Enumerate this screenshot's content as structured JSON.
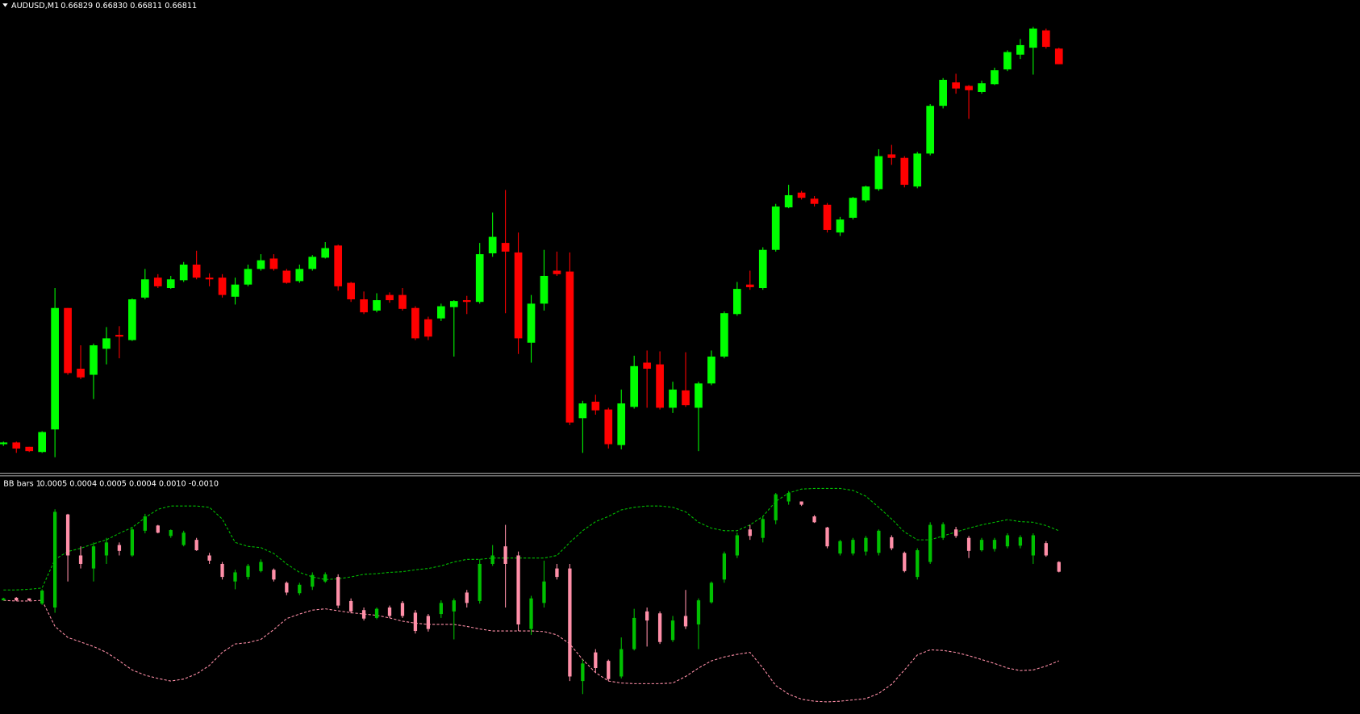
{
  "header": {
    "symbol": "AUDUSD,M1",
    "quote": "0.66829 0.66830 0.66811 0.66811"
  },
  "indicator_header": {
    "name": "BB bars 1",
    "values": "0.0005 0.0004 0.0005 0.0004 0.0010 -0.0010"
  },
  "chart_data": [
    {
      "type": "candlestick",
      "up_color": "#00ff00",
      "down_color": "#ff0000",
      "open": [
        0.66373,
        0.66375,
        0.6637,
        0.66364,
        0.6639,
        0.6653,
        0.6646,
        0.66453,
        0.66483,
        0.66499,
        0.66493,
        0.66542,
        0.66565,
        0.66553,
        0.66562,
        0.6658,
        0.66565,
        0.66565,
        0.66543,
        0.66557,
        0.66575,
        0.66587,
        0.66573,
        0.66561,
        0.66575,
        0.66588,
        0.66602,
        0.66559,
        0.6654,
        0.66527,
        0.66545,
        0.66545,
        0.6653,
        0.66517,
        0.66518,
        0.66531,
        0.66539,
        0.66537,
        0.66593,
        0.66605,
        0.66594,
        0.6649,
        0.66535,
        0.66573,
        0.66572,
        0.66403,
        0.66422,
        0.66413,
        0.66372,
        0.66416,
        0.66467,
        0.66465,
        0.66415,
        0.66435,
        0.66415,
        0.66443,
        0.66474,
        0.66523,
        0.66557,
        0.66553,
        0.66597,
        0.66646,
        0.66663,
        0.66656,
        0.66649,
        0.66617,
        0.66634,
        0.66654,
        0.66667,
        0.66707,
        0.66703,
        0.6667,
        0.66708,
        0.66763,
        0.6679,
        0.66786,
        0.66779,
        0.66788,
        0.66805,
        0.66822,
        0.6683,
        0.6685,
        0.66829
      ],
      "high": [
        0.66376,
        0.66376,
        0.6637,
        0.66388,
        0.66553,
        0.6653,
        0.66487,
        0.66489,
        0.66508,
        0.66509,
        0.66541,
        0.66575,
        0.66569,
        0.66567,
        0.66583,
        0.66596,
        0.6657,
        0.66569,
        0.66565,
        0.6658,
        0.66592,
        0.66592,
        0.66575,
        0.6658,
        0.66591,
        0.66606,
        0.66603,
        0.6656,
        0.66549,
        0.66547,
        0.66548,
        0.66553,
        0.66532,
        0.6652,
        0.66535,
        0.66539,
        0.66544,
        0.66605,
        0.6664,
        0.66666,
        0.66617,
        0.66545,
        0.66597,
        0.66595,
        0.66594,
        0.66423,
        0.6643,
        0.66415,
        0.66436,
        0.66475,
        0.66481,
        0.6648,
        0.66445,
        0.66479,
        0.66445,
        0.66481,
        0.66526,
        0.6656,
        0.66573,
        0.666,
        0.6665,
        0.66672,
        0.66665,
        0.66659,
        0.66651,
        0.66635,
        0.66658,
        0.66671,
        0.66713,
        0.66718,
        0.66705,
        0.6671,
        0.66765,
        0.66795,
        0.668,
        0.66787,
        0.66792,
        0.66807,
        0.66827,
        0.6684,
        0.66854,
        0.66852,
        0.6683
      ],
      "low": [
        0.66371,
        0.66363,
        0.66364,
        0.66363,
        0.66358,
        0.66453,
        0.66448,
        0.66425,
        0.66465,
        0.66472,
        0.66492,
        0.6654,
        0.66553,
        0.66552,
        0.6656,
        0.66563,
        0.66555,
        0.66542,
        0.66534,
        0.66555,
        0.66573,
        0.66573,
        0.66558,
        0.66559,
        0.66573,
        0.66587,
        0.6655,
        0.66537,
        0.66523,
        0.66525,
        0.66536,
        0.66527,
        0.66493,
        0.66493,
        0.66515,
        0.66474,
        0.66523,
        0.66535,
        0.66589,
        0.66524,
        0.66477,
        0.66467,
        0.66527,
        0.66567,
        0.66395,
        0.66363,
        0.66407,
        0.66368,
        0.66367,
        0.66414,
        0.66415,
        0.66413,
        0.66409,
        0.66416,
        0.66365,
        0.66441,
        0.66472,
        0.66521,
        0.66551,
        0.66551,
        0.66595,
        0.66645,
        0.66655,
        0.66647,
        0.66617,
        0.66613,
        0.66632,
        0.66652,
        0.66665,
        0.66695,
        0.66669,
        0.66668,
        0.66706,
        0.6676,
        0.66777,
        0.66748,
        0.66777,
        0.66787,
        0.66803,
        0.66817,
        0.66799,
        0.66829,
        0.66811
      ],
      "close": [
        0.66375,
        0.66368,
        0.66365,
        0.66387,
        0.6653,
        0.66455,
        0.6645,
        0.66487,
        0.66495,
        0.66497,
        0.6654,
        0.66563,
        0.66555,
        0.66563,
        0.6658,
        0.66565,
        0.66563,
        0.66545,
        0.66557,
        0.66575,
        0.66585,
        0.66575,
        0.66559,
        0.66575,
        0.66589,
        0.66599,
        0.66555,
        0.6654,
        0.66525,
        0.66539,
        0.66539,
        0.66529,
        0.66495,
        0.66497,
        0.66532,
        0.66538,
        0.66537,
        0.66592,
        0.66612,
        0.66595,
        0.66495,
        0.66535,
        0.66567,
        0.66569,
        0.66398,
        0.6642,
        0.66412,
        0.66373,
        0.6642,
        0.66463,
        0.6646,
        0.66415,
        0.66436,
        0.66418,
        0.66443,
        0.66474,
        0.66524,
        0.66552,
        0.66554,
        0.66597,
        0.66647,
        0.6666,
        0.66657,
        0.6665,
        0.6662,
        0.66632,
        0.66657,
        0.6667,
        0.66705,
        0.66703,
        0.66672,
        0.66708,
        0.66763,
        0.66793,
        0.66783,
        0.66781,
        0.66789,
        0.66804,
        0.66825,
        0.66833,
        0.66852,
        0.66831,
        0.66811
      ]
    },
    {
      "type": "candlestick",
      "up_color": "#00c000",
      "down_color": "#ff8fa8",
      "open": [
        -8e-05,
        -4e-05,
        -5e-05,
        -0.00013,
        -0.00019,
        0.00124,
        0.00061,
        0.00041,
        0.00061,
        0.00077,
        0.00061,
        0.00099,
        0.00107,
        0.00091,
        0.00077,
        0.00085,
        0.00061,
        0.00048,
        0.00021,
        0.00028,
        0.00037,
        0.00039,
        0.00019,
        3e-05,
        0.00013,
        0.00021,
        0.00028,
        -9e-05,
        -0.00023,
        -0.00035,
        -0.00019,
        -0.00012,
        -0.00027,
        -0.00032,
        -0.00029,
        -0.00025,
        4e-05,
        -9e-05,
        0.00048,
        0.00075,
        0.00061,
        -0.00052,
        -0.00012,
        0.00041,
        0.00041,
        -0.00132,
        -0.00088,
        -0.00101,
        -0.00125,
        -0.00083,
        -0.00025,
        -0.00028,
        -0.00069,
        -0.00032,
        -0.00045,
        -0.00011,
        0.00024,
        0.00061,
        0.00101,
        0.00088,
        0.00115,
        0.00144,
        0.00144,
        0.00121,
        0.00104,
        0.00064,
        0.00064,
        0.00067,
        0.00065,
        0.00089,
        0.00065,
        0.00028,
        0.00051,
        0.00088,
        0.00101,
        0.00088,
        0.00069,
        0.00071,
        0.00075,
        0.00076,
        0.00061,
        0.0008,
        0.00051
      ],
      "high": [
        -4e-05,
        -3e-05,
        -5e-05,
        9e-05,
        0.00132,
        0.00125,
        0.00075,
        0.00081,
        0.00088,
        0.00081,
        0.00105,
        0.00125,
        0.00108,
        0.00101,
        0.00099,
        0.00088,
        0.00065,
        0.00051,
        0.00039,
        0.00048,
        0.00055,
        0.00041,
        0.00021,
        0.00019,
        0.00035,
        0.00035,
        0.00032,
        -5e-05,
        -0.00019,
        -0.00019,
        -0.00016,
        -9e-05,
        -0.00023,
        -0.00029,
        -8e-05,
        -5e-05,
        8e-05,
        0.00055,
        0.00077,
        0.00108,
        0.00067,
        -1e-05,
        0.00053,
        0.00048,
        0.00048,
        -0.00099,
        -0.00083,
        -0.00099,
        -0.00065,
        -0.00021,
        -0.00019,
        -0.00025,
        -0.00032,
        8e-05,
        -5e-05,
        0.00021,
        0.00067,
        0.00096,
        0.00108,
        0.00121,
        0.00157,
        0.0016,
        0.00144,
        0.00123,
        0.00105,
        0.00085,
        0.00088,
        0.00091,
        0.00101,
        0.00092,
        0.00067,
        0.00072,
        0.00112,
        0.00112,
        0.00105,
        0.00091,
        0.00088,
        0.00088,
        0.00095,
        0.00092,
        0.00095,
        0.00083,
        0.00052
      ],
      "low": [
        -8e-05,
        -9e-05,
        -9e-05,
        -0.00015,
        -0.00027,
        0.00021,
        0.00041,
        0.00021,
        0.00048,
        0.00061,
        0.00059,
        0.00095,
        0.00095,
        0.00088,
        0.00075,
        0.00068,
        0.00048,
        0.00024,
        9e-05,
        0.00024,
        0.00035,
        0.00021,
        0,
        0,
        8e-05,
        0.00019,
        -0.0002,
        -0.00028,
        -0.00039,
        -0.00037,
        -0.00035,
        -0.00035,
        -0.00059,
        -0.00056,
        -0.00035,
        -0.00068,
        -0.00019,
        -0.00013,
        0.00045,
        -0.00019,
        -0.00055,
        -0.00061,
        -0.00019,
        0.00024,
        -0.00132,
        -0.00152,
        -0.00119,
        -0.00132,
        -0.00128,
        -0.00085,
        -0.00079,
        -0.00075,
        -0.00072,
        -0.00052,
        -0.00083,
        -0.00013,
        0.00019,
        0.00057,
        0.00085,
        0.00081,
        0.00109,
        0.00139,
        0.00137,
        0.00111,
        0.00072,
        0.00061,
        0.00061,
        0.00061,
        0.00061,
        0.00069,
        0.00035,
        0.00024,
        0.00048,
        0.00085,
        0.00088,
        0.00057,
        0.00067,
        0.00067,
        0.00072,
        0.00072,
        0.00048,
        0.00059,
        0.00035
      ],
      "close": [
        -5e-05,
        -8e-05,
        -8e-05,
        7e-05,
        0.00128,
        0.00061,
        0.00048,
        0.00075,
        0.00081,
        0.00068,
        0.00101,
        0.00121,
        0.00096,
        0.001,
        0.00096,
        0.00069,
        0.00053,
        0.00028,
        0.00035,
        0.00045,
        0.00051,
        0.00024,
        4e-05,
        0.00016,
        0.00031,
        0.00032,
        -0.00016,
        -0.00025,
        -0.00036,
        -0.00021,
        -0.00032,
        -0.00032,
        -0.00055,
        -0.00052,
        -0.00012,
        -8e-05,
        -0.00012,
        0.00048,
        0.00061,
        0.00048,
        -0.00045,
        -5e-05,
        0.00021,
        0.00028,
        -0.00125,
        -0.00105,
        -0.00112,
        -0.00129,
        -0.00083,
        -0.00035,
        -0.00039,
        -0.00072,
        -0.00039,
        -0.00048,
        -8e-05,
        0.00019,
        0.00064,
        0.00092,
        0.00091,
        0.00117,
        0.00155,
        0.00157,
        0.00139,
        0.00112,
        0.00075,
        0.00083,
        0.00085,
        0.00088,
        0.00099,
        0.00072,
        0.00037,
        0.00069,
        0.00108,
        0.00109,
        0.00091,
        0.00068,
        0.00085,
        0.00085,
        0.00092,
        0.00089,
        0.00092,
        0.00061,
        0.00036
      ],
      "bands": [
        {
          "color": "#00c000",
          "values": [
            8e-05,
            8e-05,
            9e-05,
            0.00011,
            0.00055,
            0.00067,
            0.00072,
            0.00079,
            0.00085,
            0.00095,
            0.00104,
            0.00119,
            0.00132,
            0.00137,
            0.00137,
            0.00137,
            0.00135,
            0.00117,
            0.00081,
            0.00075,
            0.00073,
            0.00064,
            0.00048,
            0.00035,
            0.00028,
            0.00024,
            0.00025,
            0.00028,
            0.00032,
            0.00033,
            0.00035,
            0.00036,
            0.00039,
            0.00041,
            0.00045,
            0.00051,
            0.00055,
            0.00055,
            0.00057,
            0.00057,
            0.00057,
            0.00057,
            0.00057,
            0.00061,
            0.00081,
            0.00099,
            0.00113,
            0.00121,
            0.00131,
            0.00135,
            0.00137,
            0.00137,
            0.00135,
            0.00128,
            0.00112,
            0.00103,
            0.00099,
            0.00099,
            0.00108,
            0.00121,
            0.00144,
            0.00157,
            0.00163,
            0.00164,
            0.00164,
            0.00164,
            0.00161,
            0.00152,
            0.00135,
            0.00117,
            0.00097,
            0.00085,
            0.00085,
            0.00091,
            0.00097,
            0.00103,
            0.00108,
            0.00112,
            0.00116,
            0.00113,
            0.00112,
            0.00107,
            0.00099
          ]
        },
        {
          "color": "#ff8fa8",
          "values": [
            -8e-05,
            -9e-05,
            -9e-05,
            -8e-05,
            -0.00048,
            -0.00065,
            -0.00072,
            -0.00079,
            -0.00088,
            -0.00101,
            -0.00115,
            -0.00123,
            -0.00128,
            -0.00132,
            -0.00129,
            -0.00121,
            -0.00108,
            -0.00088,
            -0.00075,
            -0.00073,
            -0.00068,
            -0.00053,
            -0.00036,
            -0.00029,
            -0.00023,
            -0.00021,
            -0.00024,
            -0.00027,
            -0.00029,
            -0.00031,
            -0.00035,
            -0.0004,
            -0.00043,
            -0.00045,
            -0.00045,
            -0.00045,
            -0.00048,
            -0.00052,
            -0.00055,
            -0.00055,
            -0.00055,
            -0.00055,
            -0.00056,
            -0.00061,
            -0.00075,
            -0.00099,
            -0.00119,
            -0.00132,
            -0.00135,
            -0.00136,
            -0.00136,
            -0.00136,
            -0.00135,
            -0.00125,
            -0.00112,
            -0.00101,
            -0.00095,
            -0.00091,
            -0.00088,
            -0.00112,
            -0.00139,
            -0.00152,
            -0.0016,
            -0.00163,
            -0.00164,
            -0.00163,
            -0.00161,
            -0.00159,
            -0.00151,
            -0.00137,
            -0.00115,
            -0.00092,
            -0.00084,
            -0.00085,
            -0.00088,
            -0.00093,
            -0.00099,
            -0.00105,
            -0.00112,
            -0.00116,
            -0.00115,
            -0.00109,
            -0.00101
          ]
        }
      ]
    }
  ]
}
